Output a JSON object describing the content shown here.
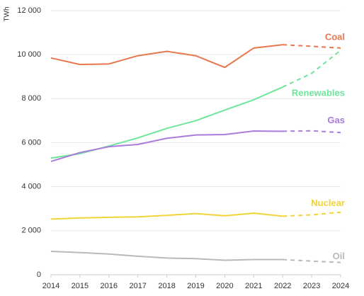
{
  "chart_data": {
    "type": "line",
    "y_label": "TWh",
    "x": [
      2014,
      2015,
      2016,
      2017,
      2018,
      2019,
      2020,
      2021,
      2022,
      2023,
      2024
    ],
    "xlim": [
      2014,
      2024
    ],
    "xticks": [
      2014,
      2015,
      2016,
      2017,
      2018,
      2019,
      2020,
      2021,
      2022,
      2023,
      2024
    ],
    "ylim": [
      0,
      12000
    ],
    "yticks": [
      0,
      {
        "value": 2000,
        "label": "2 000"
      },
      {
        "value": 4000,
        "label": "4 000"
      },
      {
        "value": 6000,
        "label": "6 000"
      },
      {
        "value": 8000,
        "label": "8 000"
      },
      {
        "value": 10000,
        "label": "10 000"
      },
      {
        "value": 12000,
        "label": "12 000"
      }
    ],
    "grid": true,
    "dashed_from": 2022,
    "series": [
      {
        "name": "Coal",
        "color": "#e8774f",
        "values": [
          9850,
          9550,
          9580,
          9950,
          10150,
          9950,
          9420,
          10300,
          10450,
          10380,
          10300
        ]
      },
      {
        "name": "Renewables",
        "color": "#6ee69a",
        "values": [
          5300,
          5500,
          5850,
          6220,
          6650,
          7000,
          7480,
          7950,
          8530,
          9150,
          10200
        ]
      },
      {
        "name": "Gas",
        "color": "#a97ddb",
        "values": [
          5150,
          5550,
          5820,
          5920,
          6200,
          6350,
          6370,
          6530,
          6520,
          6540,
          6460
        ]
      },
      {
        "name": "Nuclear",
        "color": "#f2d43a",
        "values": [
          2530,
          2580,
          2610,
          2630,
          2700,
          2780,
          2680,
          2800,
          2660,
          2720,
          2840
        ]
      },
      {
        "name": "Oil",
        "color": "#b9b9b9",
        "values": [
          1060,
          1010,
          940,
          840,
          760,
          730,
          660,
          690,
          690,
          620,
          560
        ]
      }
    ]
  }
}
